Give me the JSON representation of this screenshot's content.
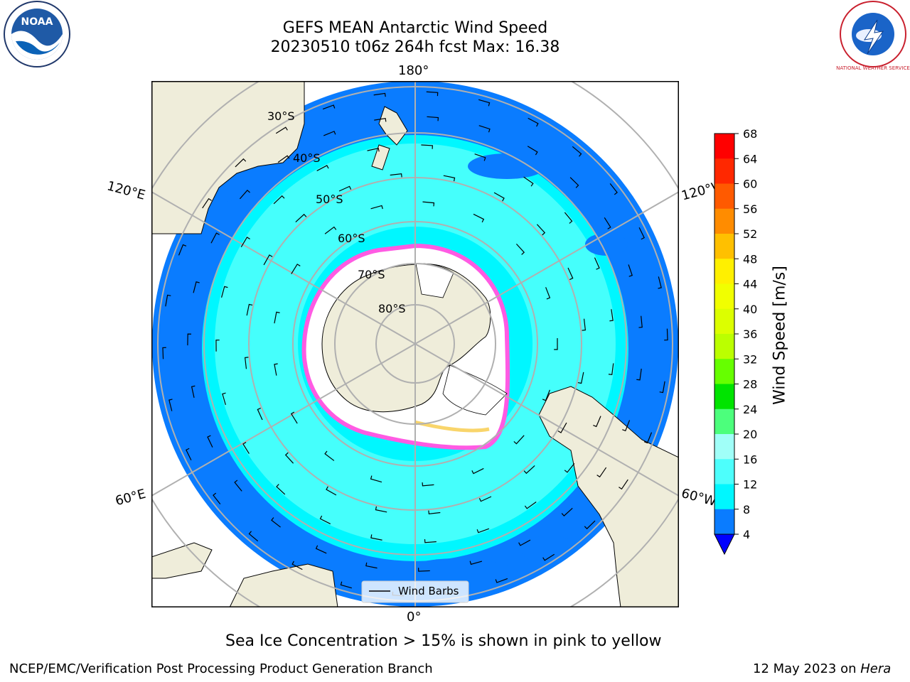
{
  "title": {
    "line1": "GEFS MEAN Antarctic Wind Speed",
    "line2": "20230510 t06z 264h fcst   Max: 16.38"
  },
  "map": {
    "projection": "south-polar-stereographic",
    "lon_labels": {
      "top": "180°",
      "bottom": "0°",
      "left_upper": "120°E",
      "right_upper": "120°W",
      "left_lower": "60°E",
      "right_lower": "60°W"
    },
    "lat_labels": [
      "30°S",
      "40°S",
      "50°S",
      "60°S",
      "70°S",
      "80°S"
    ],
    "legend_label": "Wind Barbs",
    "colors": {
      "ocean_low": "#0a7cff",
      "ocean_mid": "#00f7ff",
      "ocean_high": "#4dfffc",
      "land": "#efedda",
      "ice_edge": "#ff5be3",
      "ice_core": "#ffffff"
    }
  },
  "colorbar": {
    "label": "Wind Speed [m/s]",
    "ticks": [
      "68",
      "64",
      "60",
      "56",
      "52",
      "48",
      "44",
      "40",
      "36",
      "32",
      "28",
      "24",
      "20",
      "16",
      "12",
      "8",
      "4"
    ],
    "colors": [
      "#0000ff",
      "#0a7cff",
      "#00f7ff",
      "#4dfffc",
      "#a0fff8",
      "#4cff7c",
      "#00e400",
      "#66ff00",
      "#bbff00",
      "#dcff00",
      "#f1ff00",
      "#fff000",
      "#ffc000",
      "#ff8c00",
      "#ff5a00",
      "#ff2800",
      "#ff0000"
    ]
  },
  "caption": "Sea Ice Concentration > 15% is shown in pink to yellow",
  "footer": {
    "left": "NCEP/EMC/Verification Post Processing Product Generation Branch",
    "right_prefix": "12 May 2023 on",
    "right_host": "Hera"
  },
  "logos": {
    "left": "NOAA",
    "right": "NATIONAL WEATHER SERVICE"
  }
}
